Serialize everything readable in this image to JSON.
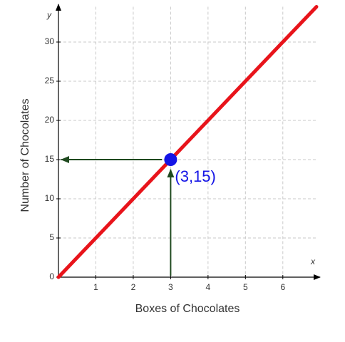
{
  "chart_data": {
    "type": "line",
    "x_label": "Boxes of Chocolates",
    "y_label": "Number of Chocolates",
    "x_axis_letter": "x",
    "y_axis_letter": "y",
    "xlim": [
      0,
      6.9
    ],
    "ylim": [
      0,
      34.5
    ],
    "xticks": [
      1,
      2,
      3,
      4,
      5,
      6
    ],
    "yticks": [
      0,
      5,
      10,
      15,
      20,
      25,
      30
    ],
    "grid": true,
    "series": [
      {
        "color": "#e8141b",
        "x": [
          0,
          6.9
        ],
        "values": [
          0,
          34.5
        ]
      }
    ],
    "point": {
      "x": 3,
      "y": 15,
      "label": "(3,15)",
      "color": "#1414e6"
    },
    "arrow_color": "#1f4a1f"
  }
}
